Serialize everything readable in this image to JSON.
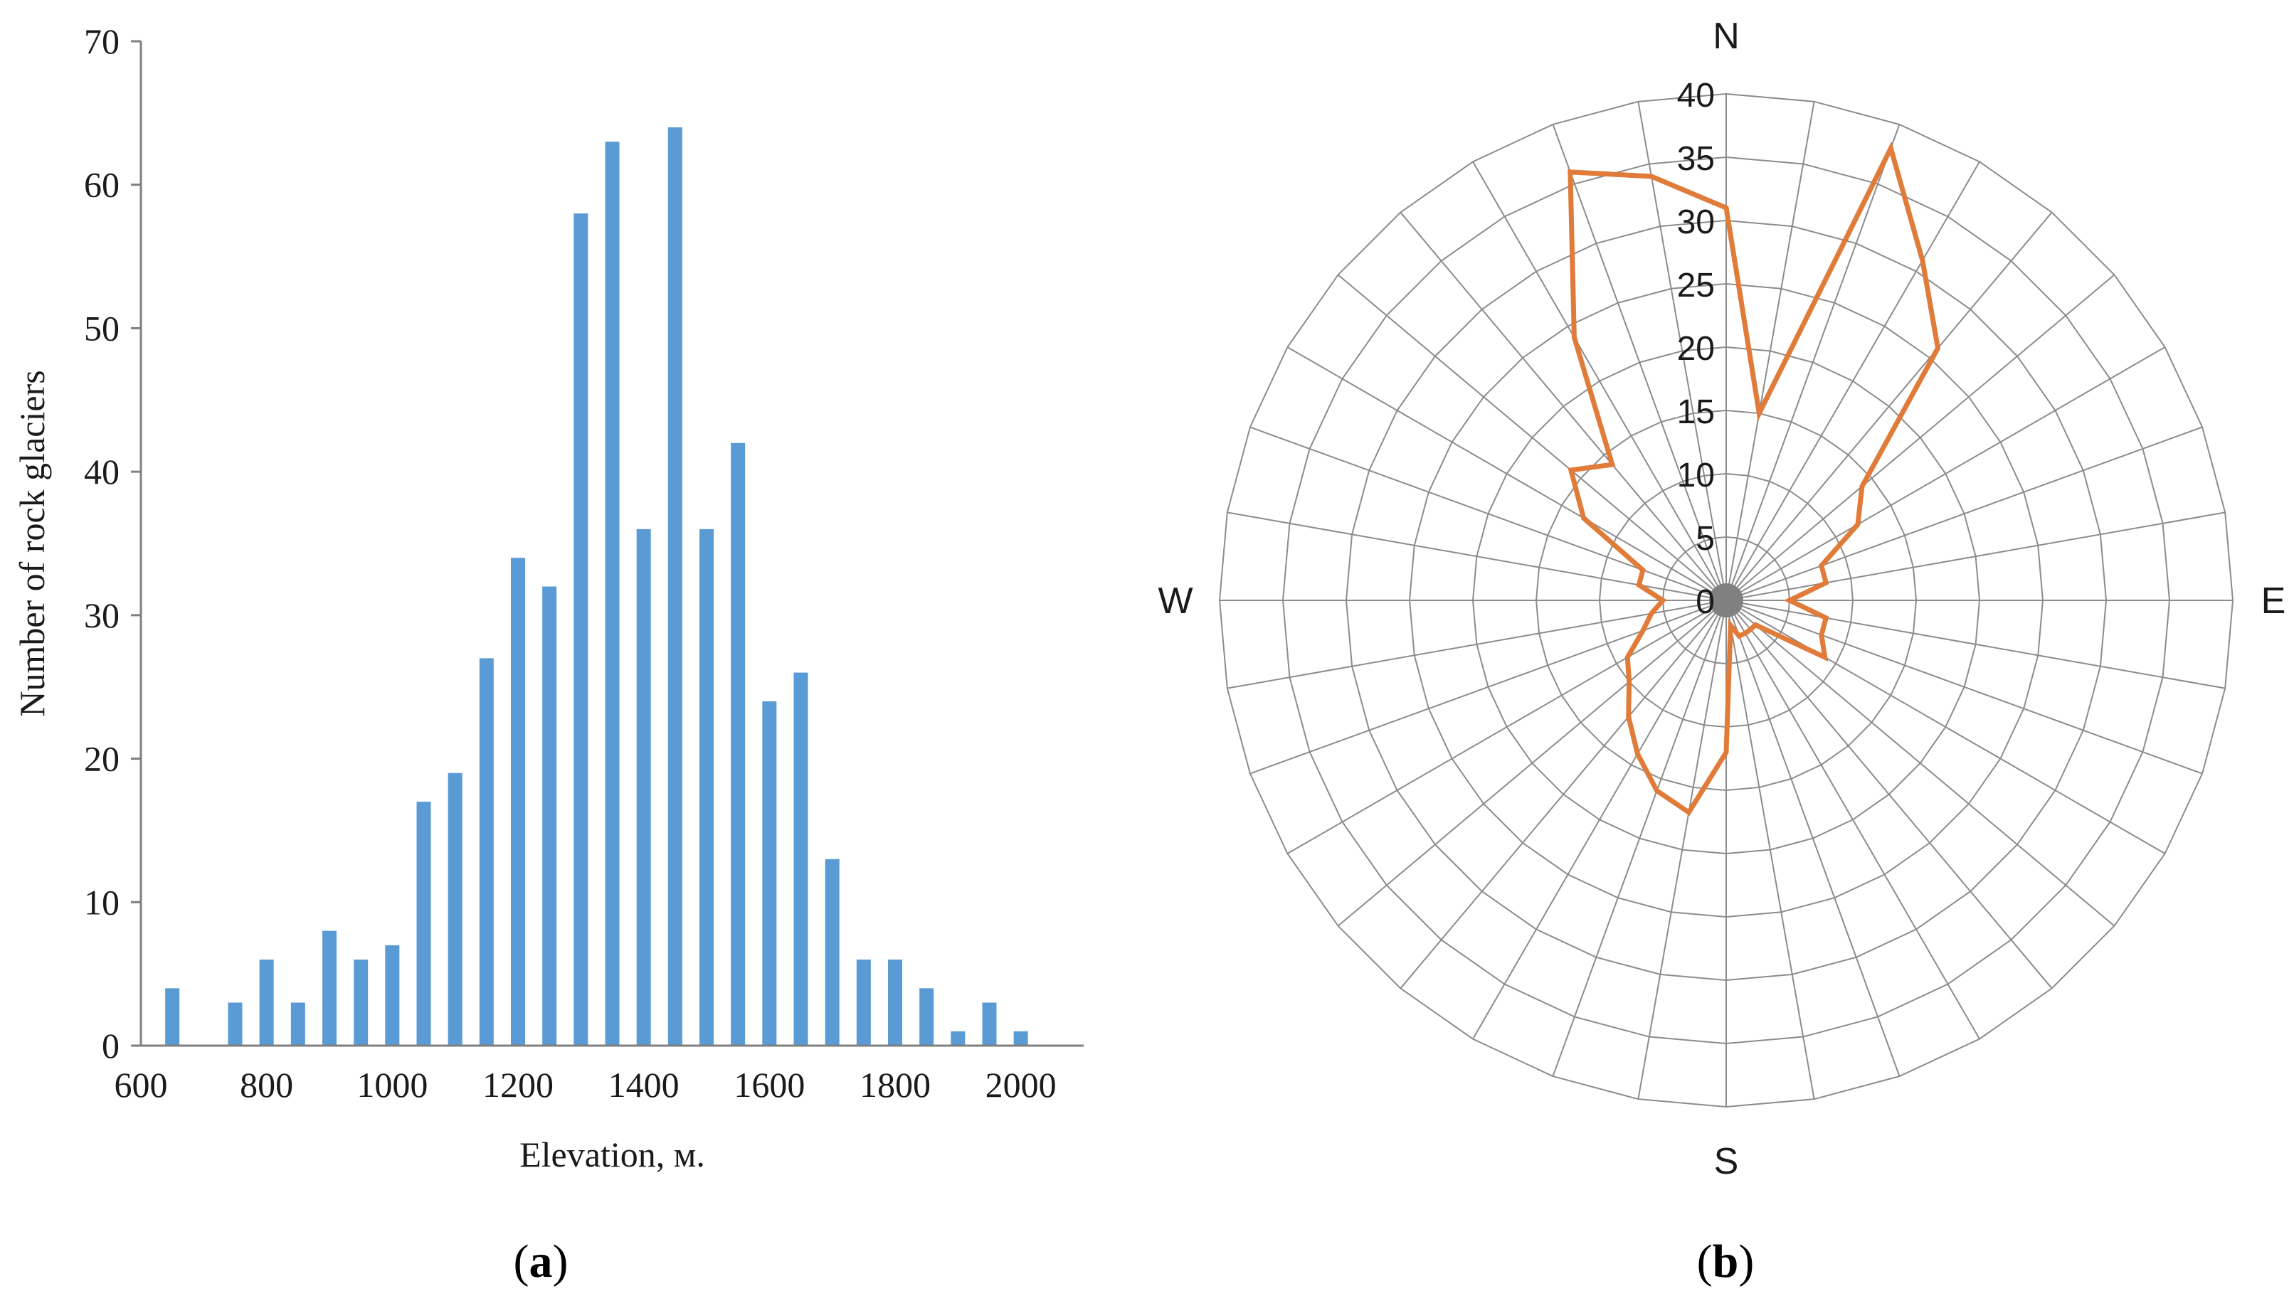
{
  "chart_data": [
    {
      "type": "bar",
      "panel": "(a)",
      "panel_letter": "a",
      "title": "",
      "xlabel": "Elevation, м.",
      "ylabel": "Number of rock glaciers",
      "xlim": [
        600,
        2100
      ],
      "ylim": [
        0,
        70
      ],
      "x_ticks": [
        600,
        800,
        1000,
        1200,
        1400,
        1600,
        1800,
        2000
      ],
      "y_ticks": [
        0,
        10,
        20,
        30,
        40,
        50,
        60,
        70
      ],
      "bar_color": "#5b9bd5",
      "x": [
        650,
        750,
        800,
        850,
        900,
        950,
        1000,
        1050,
        1100,
        1150,
        1200,
        1250,
        1300,
        1350,
        1400,
        1450,
        1500,
        1550,
        1600,
        1650,
        1700,
        1750,
        1800,
        1850,
        1900,
        1950,
        2000
      ],
      "values": [
        4,
        3,
        6,
        3,
        8,
        6,
        7,
        17,
        19,
        27,
        34,
        32,
        58,
        63,
        36,
        64,
        36,
        42,
        24,
        26,
        13,
        6,
        6,
        4,
        1,
        3,
        1
      ]
    },
    {
      "type": "radar",
      "panel": "(b)",
      "panel_letter": "b",
      "title": "",
      "directions": {
        "N": "N",
        "E": "E",
        "S": "S",
        "W": "W"
      },
      "r_ticks": [
        0,
        5,
        10,
        15,
        20,
        25,
        30,
        35,
        40
      ],
      "rlim": [
        0,
        40
      ],
      "line_color": "#e07b39",
      "spokes": 36,
      "angles_deg": [
        0,
        10,
        20,
        30,
        40,
        50,
        60,
        70,
        80,
        90,
        100,
        110,
        120,
        130,
        140,
        150,
        160,
        170,
        180,
        190,
        200,
        210,
        220,
        230,
        240,
        250,
        260,
        270,
        280,
        290,
        300,
        310,
        320,
        330,
        340,
        350
      ],
      "values": [
        31,
        15,
        38,
        31,
        26,
        14,
        12,
        8,
        8,
        5,
        8,
        8,
        9,
        3,
        3,
        3,
        3,
        2,
        12,
        17,
        16,
        14,
        12,
        10,
        9,
        7,
        6,
        5,
        7,
        7,
        13,
        16,
        14,
        24,
        36,
        34
      ]
    }
  ]
}
